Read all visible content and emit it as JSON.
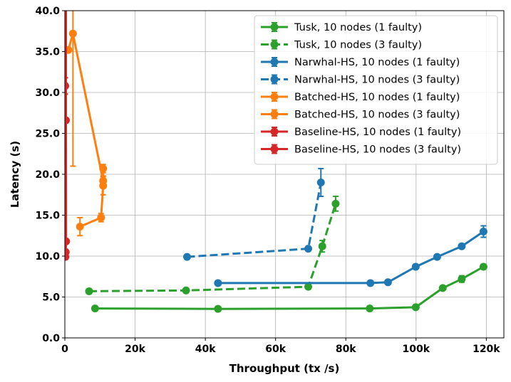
{
  "chart_data": {
    "type": "line",
    "xlabel": "Throughput (tx /s)",
    "ylabel": "Latency (s)",
    "xlim": [
      0,
      125000
    ],
    "ylim": [
      0,
      40
    ],
    "xticks": [
      0,
      20000,
      40000,
      60000,
      80000,
      100000,
      120000
    ],
    "xtick_labels": [
      "0",
      "20k",
      "40k",
      "60k",
      "80k",
      "100k",
      "120k"
    ],
    "yticks": [
      0,
      5,
      10,
      15,
      20,
      25,
      30,
      35,
      40
    ],
    "ytick_labels": [
      "0.0",
      "5.0",
      "10.0",
      "15.0",
      "20.0",
      "25.0",
      "30.0",
      "35.0",
      "40.0"
    ],
    "grid": true,
    "legend_position": "top-right",
    "series": [
      {
        "name": "Tusk, 10 nodes (1 faulty)",
        "color": "#2ca02c",
        "linestyle": "solid",
        "points": [
          [
            8600,
            3.6,
            0
          ],
          [
            43600,
            3.55,
            0
          ],
          [
            86800,
            3.6,
            0
          ],
          [
            99900,
            3.75,
            0
          ],
          [
            107600,
            6.1,
            0
          ],
          [
            113000,
            7.2,
            0.4
          ],
          [
            119200,
            8.7,
            0
          ]
        ]
      },
      {
        "name": "Tusk, 10 nodes (3 faulty)",
        "color": "#2ca02c",
        "linestyle": "dashed",
        "points": [
          [
            6900,
            5.7,
            0
          ],
          [
            34500,
            5.8,
            0
          ],
          [
            69300,
            6.25,
            0
          ],
          [
            73300,
            11.2,
            0.7
          ],
          [
            77100,
            16.4,
            0.9
          ]
        ]
      },
      {
        "name": "Narwhal-HS, 10 nodes (1 faulty)",
        "color": "#1f77b4",
        "linestyle": "solid",
        "points": [
          [
            43600,
            6.7,
            0
          ],
          [
            87000,
            6.7,
            0
          ],
          [
            92000,
            6.8,
            0
          ],
          [
            99900,
            8.7,
            0
          ],
          [
            106000,
            9.9,
            0
          ],
          [
            113000,
            11.2,
            0
          ],
          [
            119200,
            13.0,
            0.7
          ]
        ]
      },
      {
        "name": "Narwhal-HS, 10 nodes (3 faulty)",
        "color": "#1f77b4",
        "linestyle": "dashed",
        "points": [
          [
            34800,
            9.9,
            0
          ],
          [
            69300,
            10.9,
            0
          ],
          [
            72900,
            19.0,
            1.7
          ]
        ]
      },
      {
        "name": "Batched-HS, 10 nodes (1 faulty)",
        "color": "#ff7f0e",
        "linestyle": "solid",
        "points": [
          [
            4300,
            13.6,
            1.1
          ],
          [
            10300,
            14.7,
            0.5
          ],
          [
            10900,
            18.6,
            1.1
          ],
          [
            10900,
            20.7,
            0.5
          ]
        ]
      },
      {
        "name": "Batched-HS, 10 nodes (3 faulty)",
        "color": "#ff7f0e",
        "linestyle": "solid",
        "points": [
          [
            1000,
            35.2,
            0
          ],
          [
            2300,
            37.2,
            16.2
          ],
          [
            10900,
            19.2,
            0.6
          ]
        ]
      },
      {
        "name": "Baseline-HS, 10 nodes (1 faulty)",
        "color": "#d62728",
        "linestyle": "solid",
        "points": [
          [
            150,
            9.9,
            0
          ],
          [
            250,
            10.5,
            0
          ],
          [
            350,
            11.8,
            0
          ],
          [
            300,
            26.6,
            0
          ],
          [
            300,
            40.5,
            0
          ]
        ]
      },
      {
        "name": "Baseline-HS, 10 nodes (3 faulty)",
        "color": "#d62728",
        "linestyle": "solid",
        "points": [
          [
            100,
            30.8,
            1.0
          ],
          [
            200,
            26.6,
            0
          ]
        ]
      }
    ]
  }
}
